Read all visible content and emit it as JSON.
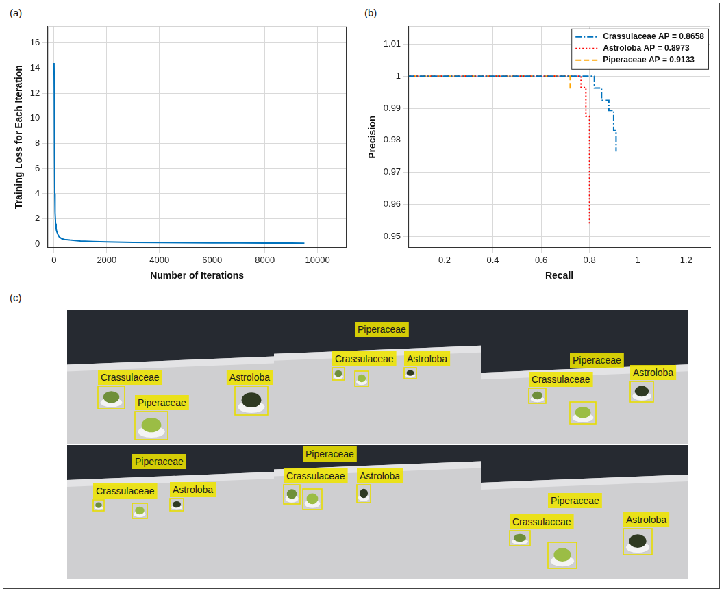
{
  "chart_data": [
    {
      "panel": "(a)",
      "type": "line",
      "x_label": "Number of Iterations",
      "y_label": "Training Loss for Each Iteration",
      "x": [
        0,
        10,
        20,
        30,
        40,
        60,
        80,
        100,
        120,
        150,
        200,
        300,
        400,
        600,
        800,
        1000,
        1500,
        2000,
        3000,
        4000,
        5000,
        6000,
        7000,
        8000,
        9000,
        9500
      ],
      "values": [
        14.4,
        12,
        7,
        4,
        2.5,
        1.6,
        1.2,
        1.0,
        0.9,
        0.75,
        0.55,
        0.4,
        0.35,
        0.3,
        0.26,
        0.22,
        0.18,
        0.15,
        0.12,
        0.1,
        0.09,
        0.08,
        0.07,
        0.06,
        0.06,
        0.05
      ],
      "color": "#0072bd",
      "line_style": "solid",
      "xlim": [
        -250,
        11100
      ],
      "xticks": [
        0,
        2000,
        4000,
        6000,
        8000,
        10000
      ],
      "ylim": [
        -0.3,
        17.3
      ],
      "yticks": [
        0,
        2,
        4,
        6,
        8,
        10,
        12,
        14,
        16
      ],
      "grid": true
    },
    {
      "panel": "(b)",
      "type": "line",
      "x_label": "Recall",
      "y_label": "Precision",
      "series": [
        {
          "name": "Crassulaceae AP = 0.8658",
          "color": "#0072bd",
          "line_style": "dashdot",
          "x": [
            0,
            0.82,
            0.82,
            0.85,
            0.85,
            0.88,
            0.88,
            0.9,
            0.9,
            0.91,
            0.91
          ],
          "values": [
            1,
            1,
            0.9963,
            0.9963,
            0.9925,
            0.9925,
            0.9893,
            0.9893,
            0.983,
            0.983,
            0.9765
          ]
        },
        {
          "name": "Astroloba AP = 0.8973",
          "color": "#ff0000",
          "line_style": "dotted",
          "x": [
            0,
            0.765,
            0.765,
            0.785,
            0.785,
            0.8,
            0.8
          ],
          "values": [
            1,
            1,
            0.9965,
            0.9965,
            0.9875,
            0.9875,
            0.954
          ]
        },
        {
          "name": "Piperaceae AP = 0.9133",
          "color": "#ffa500",
          "line_style": "dashed",
          "x": [
            0,
            0.72,
            0.72
          ],
          "values": [
            1,
            1,
            0.9955
          ]
        }
      ],
      "xlim": [
        0.05,
        1.3
      ],
      "xticks": [
        0.2,
        0.4,
        0.6,
        0.8,
        1,
        1.2
      ],
      "ylim": [
        0.9465,
        1.0155
      ],
      "yticks": [
        0.95,
        0.96,
        0.97,
        0.98,
        0.99,
        1,
        1.01
      ],
      "grid": true,
      "legend": "upper right"
    }
  ],
  "photos": {
    "panel": "(c)",
    "images": [
      {
        "detections": [
          "Crassulaceae",
          "Piperaceae",
          "Astroloba"
        ]
      },
      {
        "detections": [
          "Crassulaceae",
          "Piperaceae",
          "Astroloba"
        ]
      },
      {
        "detections": [
          "Crassulaceae",
          "Piperaceae",
          "Astroloba"
        ]
      },
      {
        "detections": [
          "Crassulaceae",
          "Piperaceae",
          "Astroloba"
        ]
      },
      {
        "detections": [
          "Crassulaceae",
          "Piperaceae",
          "Astroloba"
        ]
      },
      {
        "detections": [
          "Crassulaceae",
          "Piperaceae",
          "Astroloba"
        ]
      }
    ]
  }
}
